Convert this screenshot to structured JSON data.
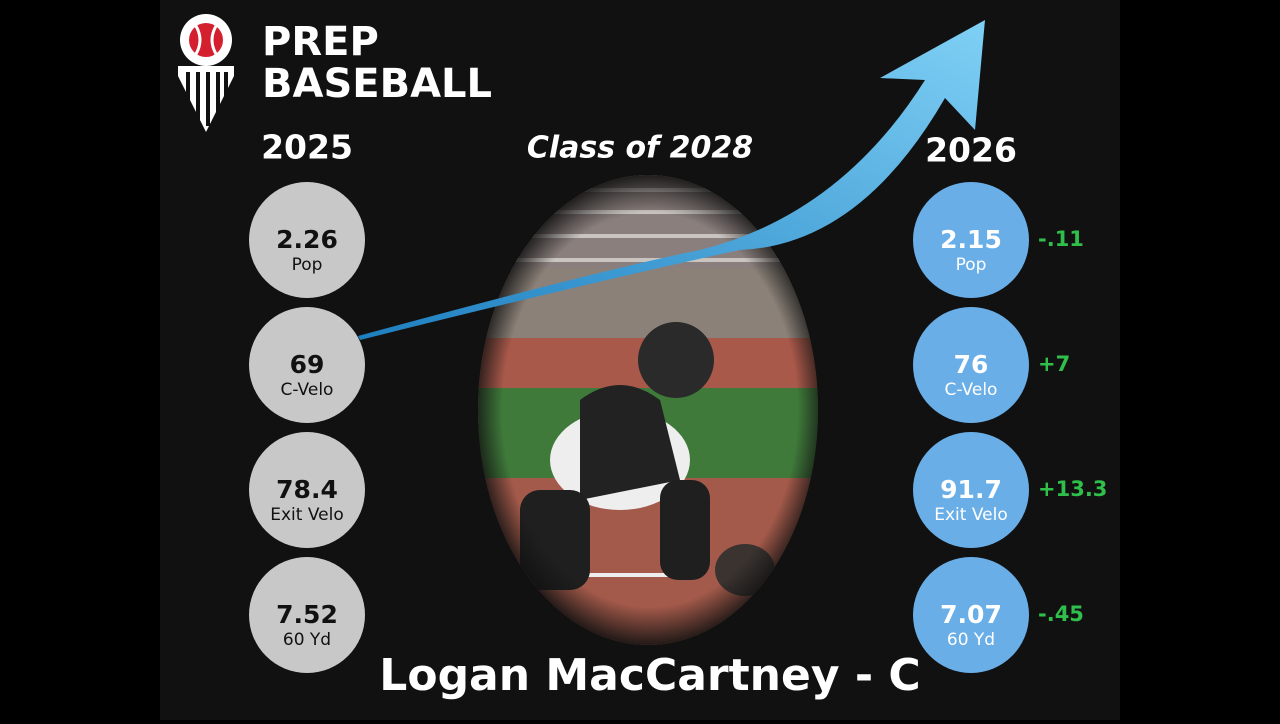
{
  "logo": {
    "line1": "PREP",
    "line2": "BASEBALL"
  },
  "class_label": "Class of 2028",
  "before": {
    "year": "2025",
    "stats": [
      {
        "value": "2.26",
        "label": "Pop"
      },
      {
        "value": "69",
        "label": "C-Velo"
      },
      {
        "value": "78.4",
        "label": "Exit Velo"
      },
      {
        "value": "7.52",
        "label": "60 Yd"
      }
    ]
  },
  "after": {
    "year": "2026",
    "stats": [
      {
        "value": "2.15",
        "label": "Pop",
        "change": "-.11"
      },
      {
        "value": "76",
        "label": "C-Velo",
        "change": "+7"
      },
      {
        "value": "91.7",
        "label": "Exit Velo",
        "change": "+13.3"
      },
      {
        "value": "7.07",
        "label": "60 Yd",
        "change": "-.45"
      }
    ]
  },
  "player": "Logan MacCartney - C"
}
